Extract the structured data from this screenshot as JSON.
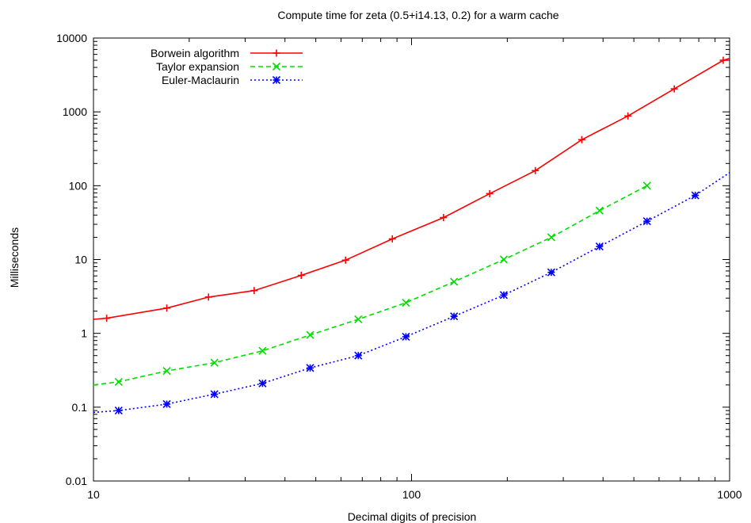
{
  "chart_data": {
    "type": "line",
    "title": "Compute time for zeta (0.5+i14.13, 0.2) for a warm cache",
    "xlabel": "Decimal digits of precision",
    "ylabel": "Milliseconds",
    "xscale": "log",
    "yscale": "log",
    "xlim": [
      10,
      1000
    ],
    "ylim": [
      0.01,
      10000
    ],
    "xticks": [
      "10",
      "100",
      "1000"
    ],
    "yticks": [
      "0.01",
      "0.1",
      "1",
      "10",
      "100",
      "1000",
      "10000"
    ],
    "grid": false,
    "legend_position": "top-left",
    "series": [
      {
        "name": "Borwein algorithm",
        "color": "#ff0000",
        "dash": "solid",
        "marker": "plus",
        "points": [
          [
            10,
            1.55
          ],
          [
            11,
            1.6
          ],
          [
            17,
            2.2
          ],
          [
            23,
            3.1
          ],
          [
            32,
            3.8
          ],
          [
            45,
            6.1
          ],
          [
            62,
            9.8
          ],
          [
            87,
            19
          ],
          [
            126,
            37
          ],
          [
            176,
            78
          ],
          [
            245,
            160
          ],
          [
            343,
            420
          ],
          [
            479,
            880
          ],
          [
            670,
            2050
          ],
          [
            955,
            5000
          ],
          [
            1000,
            5300
          ]
        ]
      },
      {
        "name": "Taylor expansion",
        "color": "#00dd00",
        "dash": "dashed",
        "marker": "x",
        "points": [
          [
            10,
            0.2
          ],
          [
            12,
            0.22
          ],
          [
            17,
            0.31
          ],
          [
            24,
            0.4
          ],
          [
            34,
            0.58
          ],
          [
            48,
            0.95
          ],
          [
            68,
            1.55
          ],
          [
            96,
            2.6
          ],
          [
            136,
            5.0
          ],
          [
            195,
            10.0
          ],
          [
            275,
            20.0
          ],
          [
            390,
            46
          ],
          [
            550,
            100
          ]
        ]
      },
      {
        "name": "Euler-Maclaurin",
        "color": "#0000ff",
        "dash": "dotted",
        "marker": "star",
        "points": [
          [
            10,
            0.085
          ],
          [
            12,
            0.09
          ],
          [
            17,
            0.11
          ],
          [
            24,
            0.15
          ],
          [
            34,
            0.21
          ],
          [
            48,
            0.34
          ],
          [
            68,
            0.5
          ],
          [
            96,
            0.9
          ],
          [
            136,
            1.7
          ],
          [
            195,
            3.3
          ],
          [
            275,
            6.7
          ],
          [
            390,
            15
          ],
          [
            550,
            33
          ],
          [
            780,
            74
          ],
          [
            1000,
            150
          ]
        ]
      }
    ]
  }
}
